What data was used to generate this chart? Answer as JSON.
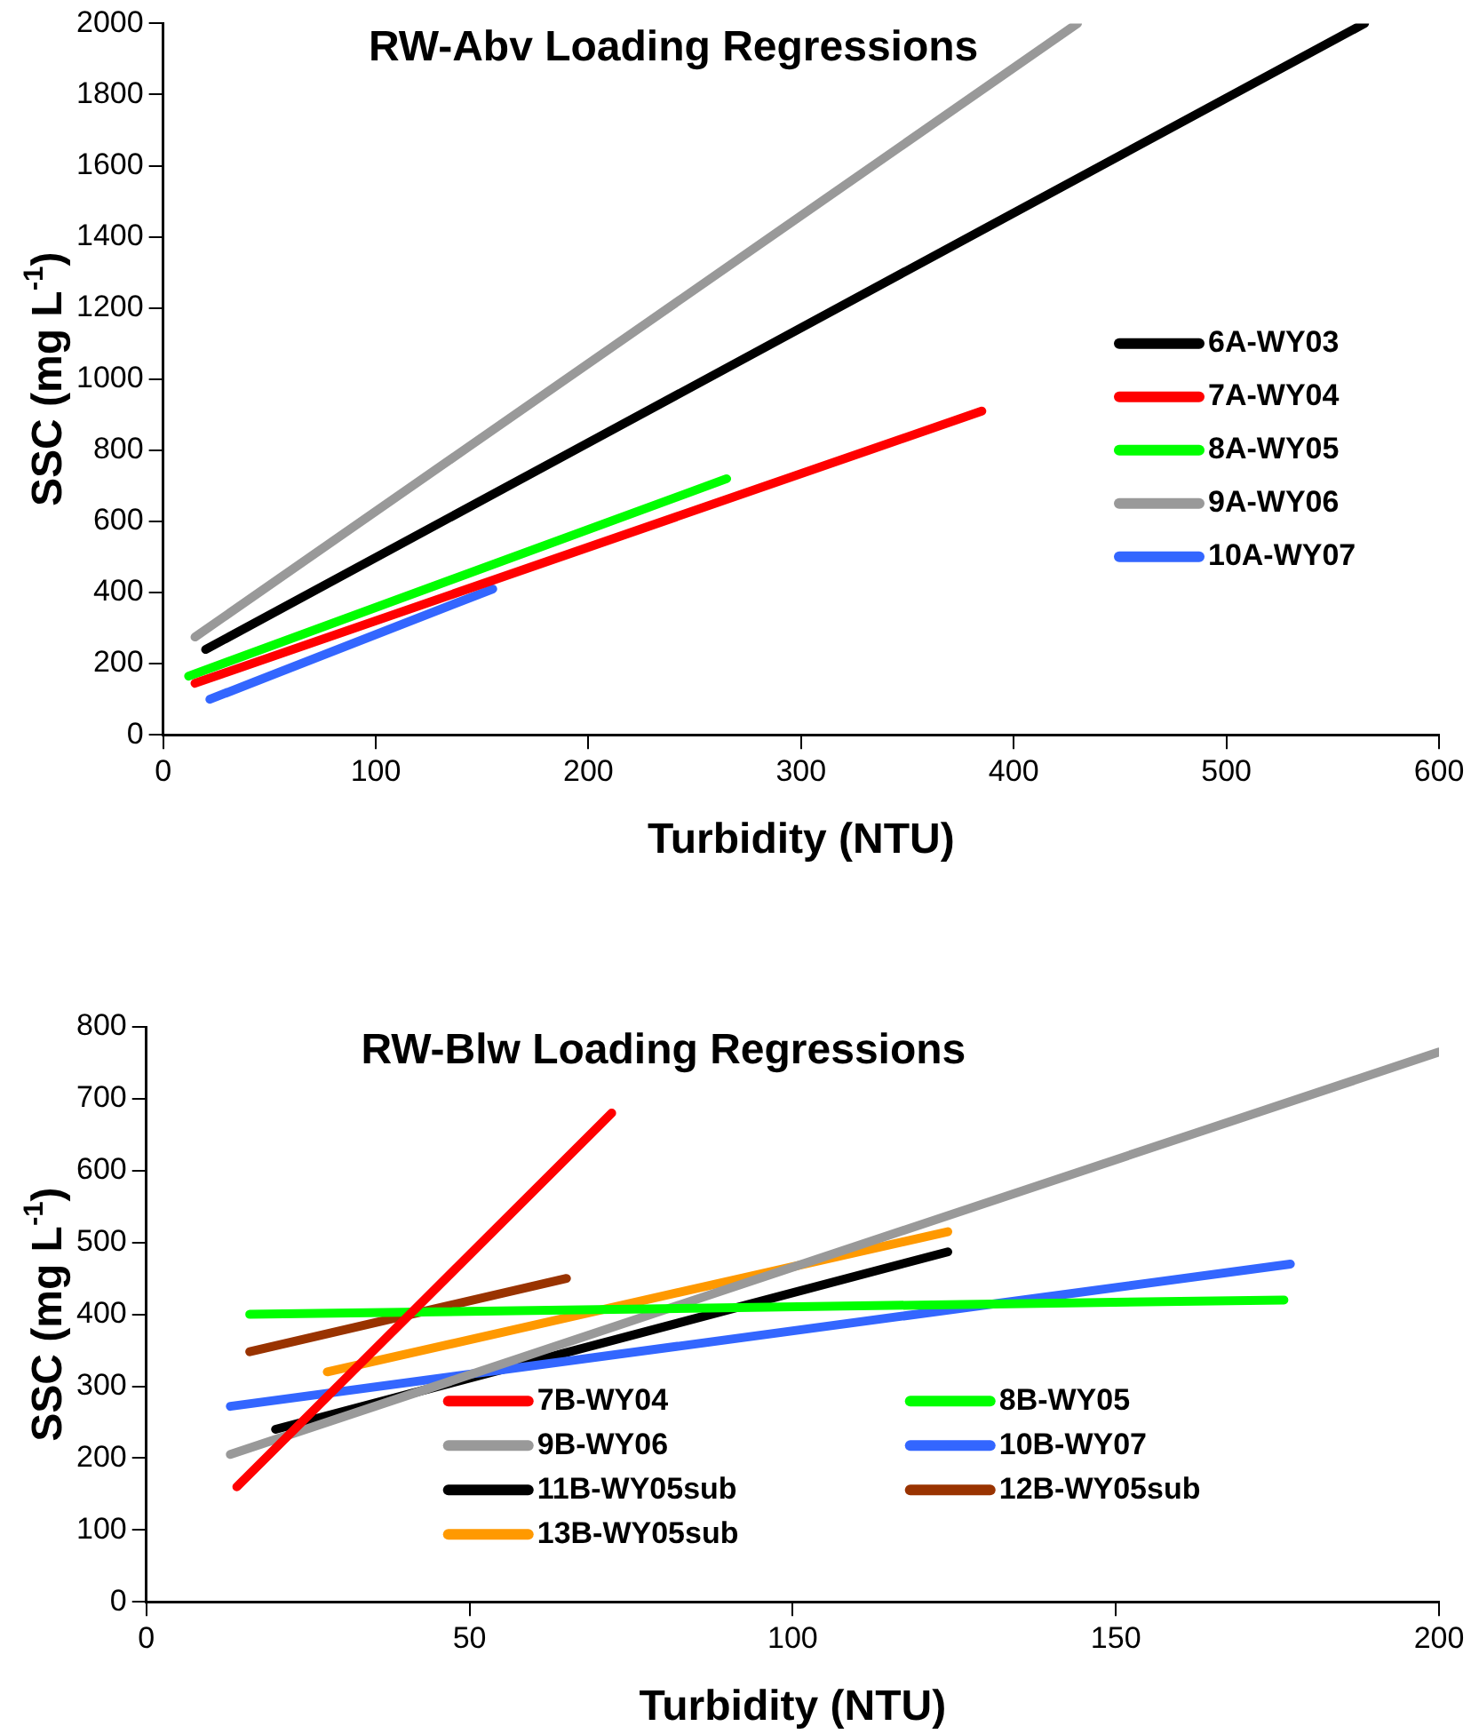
{
  "chart_data": [
    {
      "type": "line",
      "title": "RW-Abv Loading Regressions",
      "xlabel": "Turbidity (NTU)",
      "ylabel": "SSC (mg L$^{-1}$)",
      "xlim": [
        0,
        600
      ],
      "xticks": [
        0,
        100,
        200,
        300,
        400,
        500,
        600
      ],
      "ylim": [
        0,
        2000
      ],
      "yticks": [
        0,
        200,
        400,
        600,
        800,
        1000,
        1200,
        1400,
        1600,
        1800,
        2000
      ],
      "grid": false,
      "legend": "right",
      "marker": "none",
      "line_style": "solid",
      "series": [
        {
          "name": "6A-WY03",
          "color": "#000000",
          "x": [
            20,
            565
          ],
          "values": [
            240,
            2000
          ]
        },
        {
          "name": "7A-WY04",
          "color": "#ff0000",
          "x": [
            15,
            385
          ],
          "values": [
            145,
            910
          ]
        },
        {
          "name": "8A-WY05",
          "color": "#00ff00",
          "x": [
            12,
            265
          ],
          "values": [
            165,
            720
          ]
        },
        {
          "name": "9A-WY06",
          "color": "#999999",
          "x": [
            15,
            430
          ],
          "values": [
            275,
            2000
          ]
        },
        {
          "name": "10A-WY07",
          "color": "#3366ff",
          "x": [
            22,
            155
          ],
          "values": [
            100,
            410
          ]
        }
      ]
    },
    {
      "type": "line",
      "title": "RW-Blw Loading Regressions",
      "xlabel": "Turbidity (NTU)",
      "ylabel": "SSC (mg L$^{-1}$)",
      "xlim": [
        0,
        200
      ],
      "xticks": [
        0,
        50,
        100,
        150,
        200
      ],
      "ylim": [
        0,
        800
      ],
      "yticks": [
        0,
        100,
        200,
        300,
        400,
        500,
        600,
        700,
        800
      ],
      "grid": false,
      "legend": "bottom",
      "marker": "none",
      "line_style": "solid",
      "series": [
        {
          "name": "7B-WY04",
          "color": "#ff0000",
          "x": [
            14,
            72
          ],
          "values": [
            160,
            680
          ]
        },
        {
          "name": "8B-WY05",
          "color": "#00ff00",
          "x": [
            16,
            176
          ],
          "values": [
            400,
            420
          ]
        },
        {
          "name": "9B-WY06",
          "color": "#999999",
          "x": [
            13,
            200
          ],
          "values": [
            205,
            765
          ]
        },
        {
          "name": "10B-WY07",
          "color": "#3366ff",
          "x": [
            13,
            177
          ],
          "values": [
            272,
            470
          ]
        },
        {
          "name": "11B-WY05sub",
          "color": "#000000",
          "x": [
            20,
            124
          ],
          "values": [
            240,
            487
          ]
        },
        {
          "name": "12B-WY05sub",
          "color": "#993300",
          "x": [
            16,
            65
          ],
          "values": [
            348,
            450
          ]
        },
        {
          "name": "13B-WY05sub",
          "color": "#ff9900",
          "x": [
            28,
            124
          ],
          "values": [
            320,
            515
          ]
        }
      ]
    }
  ]
}
